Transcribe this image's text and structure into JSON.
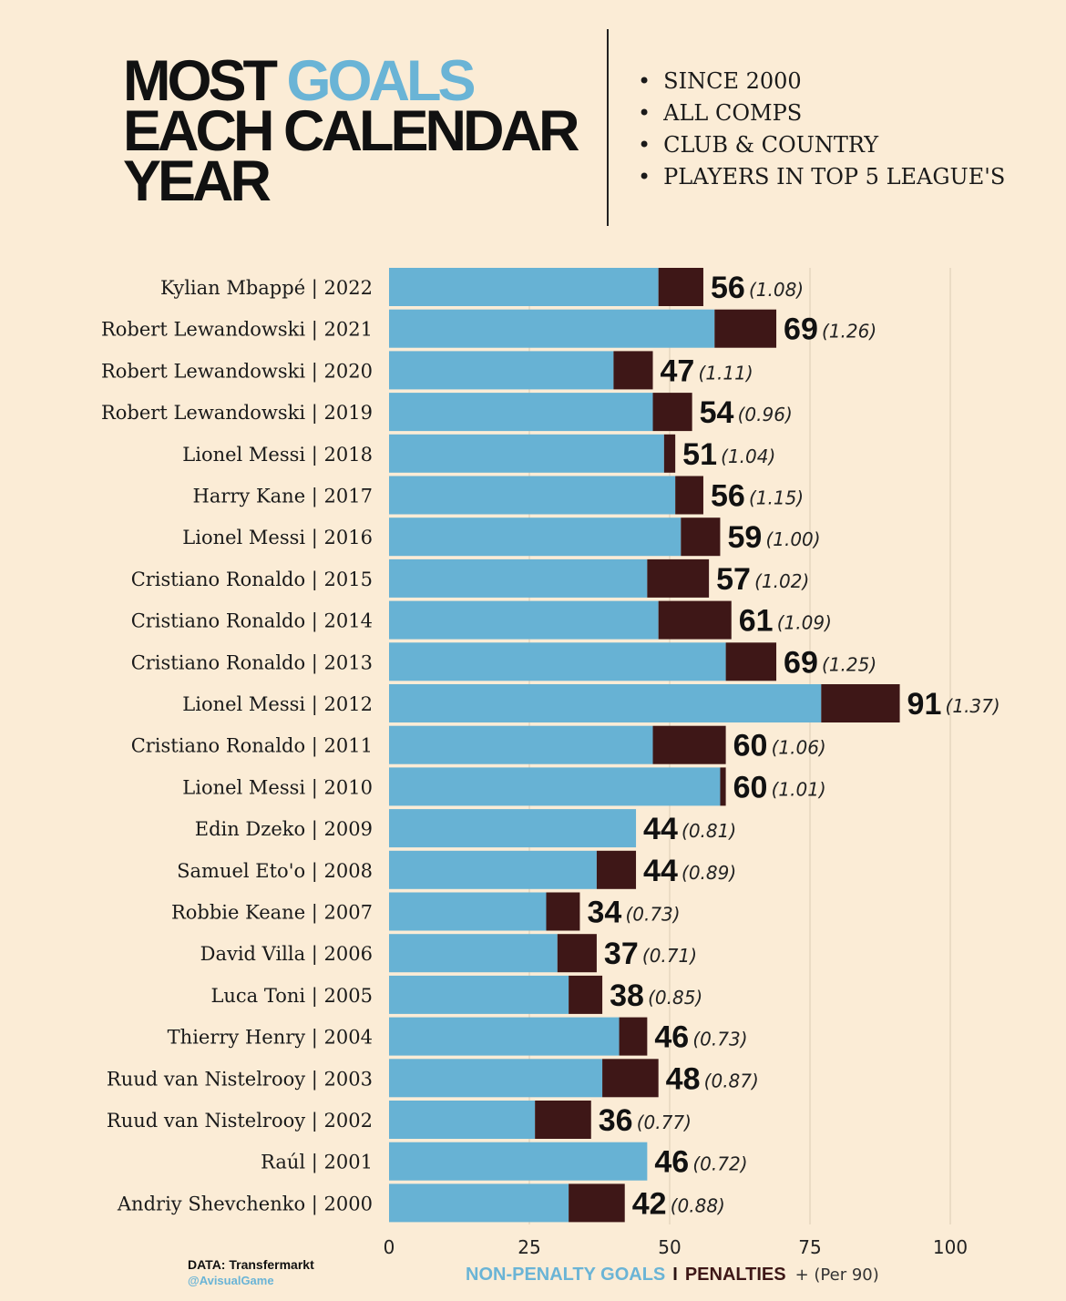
{
  "title": {
    "line1_a": "MOST",
    "line1_b": "GOALS",
    "line2": "EACH CALENDAR",
    "line3": "YEAR"
  },
  "notes": [
    "SINCE 2000",
    "ALL COMPS",
    "CLUB & COUNTRY",
    "PLAYERS IN TOP 5 LEAGUE'S"
  ],
  "footer": {
    "data_label": "DATA: Transfermarkt",
    "handle_at": "@",
    "handle_name": "AvisualGame"
  },
  "legend": {
    "non_penalty": "NON-PENALTY GOALS",
    "separator": "I",
    "penalties": "PENALTIES",
    "per90": "+ (Per 90)"
  },
  "colors": {
    "background": "#fbecd6",
    "non_penalty": "#67b2d4",
    "penalty": "#3e1717",
    "grid": "#e6d6bf"
  },
  "chart_data": {
    "type": "bar",
    "orientation": "horizontal",
    "stacked": true,
    "xlim": [
      0,
      100
    ],
    "xticks": [
      0,
      25,
      50,
      75,
      100
    ],
    "grid": true,
    "rows": [
      {
        "label": "Kylian Mbappé  |  2022",
        "total": 56,
        "penalties": 8,
        "per90": "(1.08)"
      },
      {
        "label": "Robert Lewandowski  |  2021",
        "total": 69,
        "penalties": 11,
        "per90": "(1.26)"
      },
      {
        "label": "Robert Lewandowski  |  2020",
        "total": 47,
        "penalties": 7,
        "per90": "(1.11)"
      },
      {
        "label": "Robert Lewandowski  |  2019",
        "total": 54,
        "penalties": 7,
        "per90": "(0.96)"
      },
      {
        "label": "Lionel Messi  |  2018",
        "total": 51,
        "penalties": 2,
        "per90": "(1.04)"
      },
      {
        "label": "Harry Kane  |  2017",
        "total": 56,
        "penalties": 5,
        "per90": "(1.15)"
      },
      {
        "label": "Lionel Messi  |  2016",
        "total": 59,
        "penalties": 7,
        "per90": "(1.00)"
      },
      {
        "label": "Cristiano Ronaldo  |  2015",
        "total": 57,
        "penalties": 11,
        "per90": "(1.02)"
      },
      {
        "label": "Cristiano Ronaldo  |  2014",
        "total": 61,
        "penalties": 13,
        "per90": "(1.09)"
      },
      {
        "label": "Cristiano Ronaldo  |  2013",
        "total": 69,
        "penalties": 9,
        "per90": "(1.25)"
      },
      {
        "label": "Lionel Messi  |  2012",
        "total": 91,
        "penalties": 14,
        "per90": "(1.37)"
      },
      {
        "label": "Cristiano Ronaldo  |  2011",
        "total": 60,
        "penalties": 13,
        "per90": "(1.06)"
      },
      {
        "label": "Lionel Messi  |  2010",
        "total": 60,
        "penalties": 1,
        "per90": "(1.01)"
      },
      {
        "label": "Edin Dzeko  |  2009",
        "total": 44,
        "penalties": 0,
        "per90": "(0.81)"
      },
      {
        "label": "Samuel Eto'o  |  2008",
        "total": 44,
        "penalties": 7,
        "per90": "(0.89)"
      },
      {
        "label": "Robbie Keane  |  2007",
        "total": 34,
        "penalties": 6,
        "per90": "(0.73)"
      },
      {
        "label": "David Villa  |  2006",
        "total": 37,
        "penalties": 7,
        "per90": "(0.71)"
      },
      {
        "label": "Luca Toni |  2005",
        "total": 38,
        "penalties": 6,
        "per90": "(0.85)"
      },
      {
        "label": "Thierry Henry  |  2004",
        "total": 46,
        "penalties": 5,
        "per90": "(0.73)"
      },
      {
        "label": "Ruud van Nistelrooy  |  2003",
        "total": 48,
        "penalties": 10,
        "per90": "(0.87)"
      },
      {
        "label": "Ruud van Nistelrooy  |  2002",
        "total": 36,
        "penalties": 10,
        "per90": "(0.77)"
      },
      {
        "label": "Raúl  |  2001",
        "total": 46,
        "penalties": 0,
        "per90": "(0.72)"
      },
      {
        "label": "Andriy Shevchenko  |  2000",
        "total": 42,
        "penalties": 10,
        "per90": "(0.88)"
      }
    ]
  }
}
